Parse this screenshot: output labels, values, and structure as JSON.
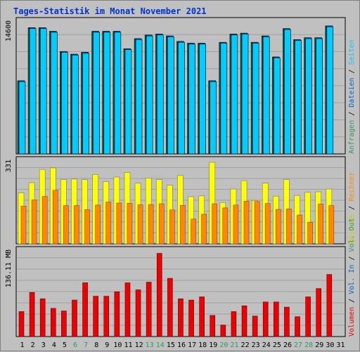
{
  "title": "Tages-Statistik im Monat November 2021",
  "colors": {
    "background": "#c0c0c0",
    "title": "#0033cc",
    "hits": "#00ccff",
    "files": "#0066cc",
    "pages": "#00cc66",
    "visits": "#ffff00",
    "hosts": "#ff8800",
    "kbytes": "#ee0000",
    "weekend_label": "#339966",
    "day_label": "#000000"
  },
  "chart_data": [
    {
      "type": "bar",
      "panel": "top",
      "ymax_label": "14600",
      "ylim": [
        0,
        14600
      ],
      "legend": [
        {
          "label": "Anfragen",
          "color": "#339966"
        },
        {
          "label": "Dateien",
          "color": "#0066cc"
        },
        {
          "label": "Seiten",
          "color": "#00ccff"
        }
      ],
      "categories": [
        "1",
        "2",
        "3",
        "4",
        "5",
        "6",
        "7",
        "8",
        "9",
        "10",
        "11",
        "12",
        "13",
        "14",
        "15",
        "16",
        "17",
        "18",
        "19",
        "20",
        "21",
        "22",
        "23",
        "24",
        "25",
        "26",
        "27",
        "28",
        "29",
        "30"
      ],
      "series": [
        {
          "name": "Anfragen",
          "values": [
            8000,
            13800,
            13800,
            13400,
            11200,
            10900,
            11100,
            13400,
            13400,
            13400,
            11500,
            12600,
            13000,
            13100,
            12900,
            12300,
            12100,
            12100,
            8000,
            12200,
            13100,
            13200,
            12200,
            12900,
            10600,
            13700,
            12500,
            12700,
            12700,
            14000
          ]
        },
        {
          "name": "Dateien",
          "values": [
            8000,
            13800,
            13800,
            13400,
            11200,
            10900,
            11100,
            13400,
            13400,
            13400,
            11500,
            12600,
            13000,
            13100,
            12900,
            12300,
            12100,
            12100,
            8000,
            12200,
            13100,
            13200,
            12200,
            12900,
            10600,
            13700,
            12500,
            12700,
            12700,
            14000
          ]
        },
        {
          "name": "Seiten",
          "values": [
            7900,
            13700,
            13700,
            13300,
            11100,
            10800,
            11000,
            13300,
            13300,
            13300,
            11400,
            12500,
            12900,
            13000,
            12800,
            12200,
            12000,
            12000,
            7900,
            12100,
            13000,
            13100,
            12100,
            12800,
            10500,
            13600,
            12400,
            12600,
            12600,
            13900
          ]
        }
      ]
    },
    {
      "type": "bar",
      "panel": "middle",
      "ymax_label": "331",
      "ylim": [
        0,
        331
      ],
      "legend": [
        {
          "label": "Besuche",
          "color": "#cccc00"
        },
        {
          "label": "Rechner",
          "color": "#ff8800"
        }
      ],
      "categories": [
        "1",
        "2",
        "3",
        "4",
        "5",
        "6",
        "7",
        "8",
        "9",
        "10",
        "11",
        "12",
        "13",
        "14",
        "15",
        "16",
        "17",
        "18",
        "19",
        "20",
        "21",
        "22",
        "23",
        "24",
        "25",
        "26",
        "27",
        "28",
        "29",
        "30"
      ],
      "series": [
        {
          "name": "Besuche",
          "values": [
            200,
            240,
            292,
            298,
            252,
            254,
            252,
            272,
            244,
            262,
            280,
            238,
            258,
            252,
            230,
            268,
            185,
            188,
            320,
            162,
            215,
            248,
            170,
            238,
            187,
            252,
            190,
            202,
            204,
            215
          ]
        },
        {
          "name": "Rechner",
          "values": [
            148,
            172,
            186,
            210,
            150,
            150,
            134,
            152,
            164,
            160,
            159,
            153,
            154,
            157,
            133,
            151,
            97,
            116,
            157,
            141,
            152,
            167,
            166,
            158,
            135,
            137,
            113,
            85,
            156,
            150
          ]
        }
      ]
    },
    {
      "type": "bar",
      "panel": "bottom",
      "ymax_label": "136.11 MB",
      "ylim": [
        0,
        136.11
      ],
      "legend": [
        {
          "label": "Volumen",
          "color": "#ee0000"
        },
        {
          "label": "Vol. In",
          "color": "#0066cc"
        },
        {
          "label": "Vol. Out",
          "color": "#339966"
        }
      ],
      "categories": [
        "1",
        "2",
        "3",
        "4",
        "5",
        "6",
        "7",
        "8",
        "9",
        "10",
        "11",
        "12",
        "13",
        "14",
        "15",
        "16",
        "17",
        "18",
        "19",
        "20",
        "21",
        "22",
        "23",
        "24",
        "25",
        "26",
        "27",
        "28",
        "29",
        "30"
      ],
      "series": [
        {
          "name": "Volumen",
          "values": [
            39,
            69,
            59,
            44,
            40,
            57,
            84,
            63,
            63,
            70,
            84,
            73,
            85,
            130,
            91,
            59,
            57,
            62,
            33,
            18,
            39,
            48,
            32,
            54,
            54,
            46,
            31,
            62,
            75,
            97
          ]
        }
      ]
    }
  ],
  "day_labels": [
    "1",
    "2",
    "3",
    "4",
    "5",
    "6",
    "7",
    "8",
    "9",
    "10",
    "11",
    "12",
    "13",
    "14",
    "15",
    "16",
    "17",
    "18",
    "19",
    "20",
    "21",
    "22",
    "23",
    "24",
    "25",
    "26",
    "27",
    "28",
    "29",
    "30",
    "31"
  ],
  "weekend_days": [
    "6",
    "7",
    "13",
    "14",
    "20",
    "21",
    "27",
    "28"
  ]
}
